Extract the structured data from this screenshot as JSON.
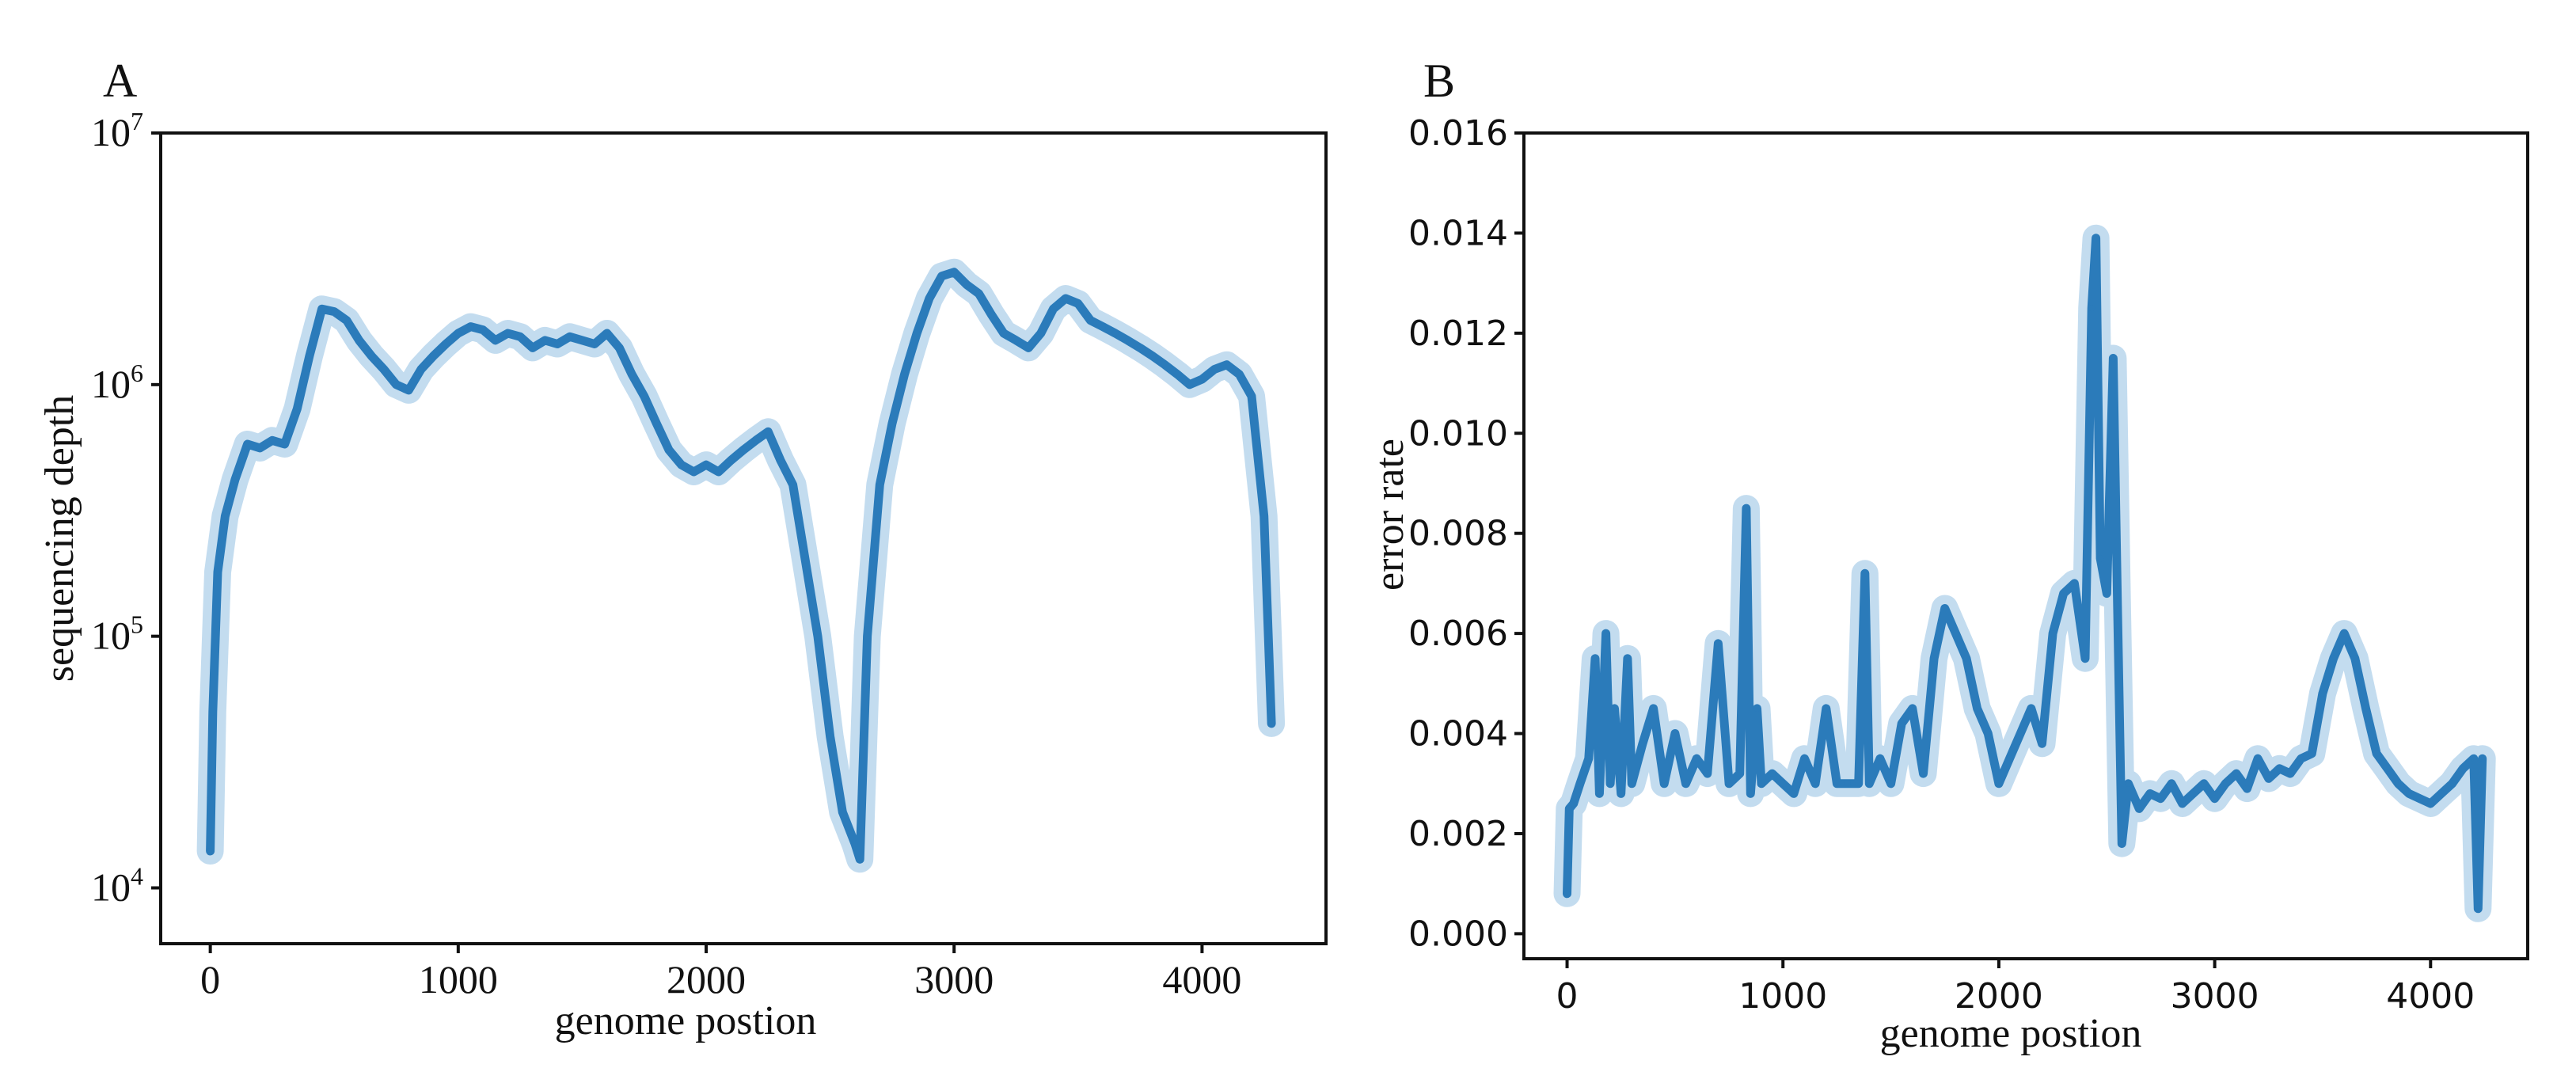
{
  "chart_data": [
    {
      "panel": "A",
      "type": "line",
      "xlabel": "genome postion",
      "ylabel": "sequencing depth",
      "xlim": [
        -200,
        4500
      ],
      "ylim": [
        6000,
        10000000
      ],
      "yscale": "log",
      "xticks": [
        0,
        1000,
        2000,
        3000,
        4000
      ],
      "xtick_labels": [
        "0",
        "1000",
        "2000",
        "3000",
        "4000"
      ],
      "yticks": [
        10000,
        100000,
        1000000,
        10000000
      ],
      "ytick_labels": [
        {
          "base": "10",
          "exp": "4"
        },
        {
          "base": "10",
          "exp": "5"
        },
        {
          "base": "10",
          "exp": "6"
        },
        {
          "base": "10",
          "exp": "7"
        }
      ],
      "grid": false,
      "series": [
        {
          "color": "#2b7bba",
          "band_color": "#b9d6ec",
          "x": [
            0,
            10,
            30,
            60,
            100,
            150,
            200,
            250,
            300,
            350,
            400,
            450,
            500,
            550,
            600,
            650,
            700,
            750,
            800,
            850,
            900,
            950,
            1000,
            1050,
            1100,
            1150,
            1200,
            1250,
            1300,
            1350,
            1400,
            1450,
            1500,
            1550,
            1600,
            1650,
            1700,
            1750,
            1800,
            1850,
            1900,
            1950,
            2000,
            2050,
            2100,
            2150,
            2200,
            2250,
            2300,
            2350,
            2400,
            2450,
            2500,
            2550,
            2600,
            2620,
            2650,
            2700,
            2750,
            2800,
            2850,
            2900,
            2950,
            3000,
            3050,
            3100,
            3150,
            3200,
            3250,
            3300,
            3350,
            3400,
            3450,
            3500,
            3550,
            3600,
            3650,
            3700,
            3750,
            3800,
            3850,
            3900,
            3950,
            4000,
            4050,
            4100,
            4150,
            4200,
            4250,
            4280
          ],
          "y": [
            14000,
            50000,
            180000,
            300000,
            420000,
            580000,
            560000,
            600000,
            580000,
            800000,
            1300000,
            2000000,
            1950000,
            1800000,
            1500000,
            1300000,
            1150000,
            1000000,
            950000,
            1150000,
            1300000,
            1450000,
            1600000,
            1700000,
            1650000,
            1500000,
            1600000,
            1550000,
            1400000,
            1500000,
            1450000,
            1550000,
            1500000,
            1450000,
            1600000,
            1400000,
            1100000,
            900000,
            700000,
            550000,
            480000,
            450000,
            480000,
            450000,
            500000,
            550000,
            600000,
            650000,
            500000,
            400000,
            200000,
            100000,
            40000,
            20000,
            15000,
            13000,
            100000,
            400000,
            700000,
            1100000,
            1600000,
            2200000,
            2700000,
            2800000,
            2500000,
            2300000,
            1900000,
            1600000,
            1500000,
            1400000,
            1600000,
            2000000,
            2200000,
            2100000,
            1800000,
            1700000,
            1600000,
            1500000,
            1400000,
            1300000,
            1200000,
            1100000,
            1000000,
            1050000,
            1150000,
            1200000,
            1100000,
            900000,
            300000,
            45000
          ]
        }
      ]
    },
    {
      "panel": "B",
      "type": "line",
      "xlabel": "genome postion",
      "ylabel": "error rate",
      "xlim": [
        -200,
        4450
      ],
      "ylim": [
        -0.0005,
        0.016
      ],
      "xticks": [
        0,
        1000,
        2000,
        3000,
        4000
      ],
      "xtick_labels": [
        "0",
        "1000",
        "2000",
        "3000",
        "4000"
      ],
      "yticks": [
        0.0,
        0.002,
        0.004,
        0.006,
        0.008,
        0.01,
        0.012,
        0.014,
        0.016
      ],
      "ytick_labels": [
        "0.000",
        "0.002",
        "0.004",
        "0.006",
        "0.008",
        "0.010",
        "0.012",
        "0.014",
        "0.016"
      ],
      "grid": false,
      "series": [
        {
          "color": "#2b7bba",
          "band_color": "#b9d6ec",
          "x": [
            0,
            10,
            30,
            60,
            100,
            130,
            150,
            180,
            200,
            220,
            250,
            280,
            300,
            350,
            400,
            450,
            500,
            550,
            600,
            650,
            700,
            750,
            800,
            830,
            850,
            880,
            900,
            950,
            1000,
            1050,
            1100,
            1150,
            1200,
            1250,
            1300,
            1350,
            1380,
            1400,
            1450,
            1500,
            1550,
            1600,
            1650,
            1700,
            1750,
            1800,
            1850,
            1900,
            1950,
            2000,
            2050,
            2100,
            2150,
            2200,
            2250,
            2300,
            2350,
            2400,
            2430,
            2450,
            2470,
            2500,
            2530,
            2550,
            2570,
            2600,
            2650,
            2700,
            2750,
            2800,
            2850,
            2900,
            2950,
            3000,
            3050,
            3100,
            3150,
            3200,
            3250,
            3300,
            3350,
            3400,
            3450,
            3500,
            3550,
            3600,
            3650,
            3700,
            3750,
            3800,
            3850,
            3900,
            3950,
            4000,
            4050,
            4100,
            4150,
            4200,
            4220,
            4240
          ],
          "y": [
            0.0008,
            0.0025,
            0.0026,
            0.003,
            0.0035,
            0.0055,
            0.0028,
            0.006,
            0.003,
            0.0045,
            0.0028,
            0.0055,
            0.003,
            0.0038,
            0.0045,
            0.003,
            0.004,
            0.003,
            0.0035,
            0.0032,
            0.0058,
            0.003,
            0.0032,
            0.0085,
            0.0028,
            0.0045,
            0.003,
            0.0032,
            0.003,
            0.0028,
            0.0035,
            0.003,
            0.0045,
            0.003,
            0.003,
            0.003,
            0.0072,
            0.003,
            0.0035,
            0.003,
            0.0042,
            0.0045,
            0.0032,
            0.0055,
            0.0065,
            0.006,
            0.0055,
            0.0045,
            0.004,
            0.003,
            0.0035,
            0.004,
            0.0045,
            0.0038,
            0.006,
            0.0068,
            0.007,
            0.0055,
            0.0125,
            0.0139,
            0.0075,
            0.0068,
            0.0115,
            0.0065,
            0.0018,
            0.003,
            0.0025,
            0.0028,
            0.0027,
            0.003,
            0.0026,
            0.0028,
            0.003,
            0.0027,
            0.003,
            0.0032,
            0.0029,
            0.0035,
            0.0031,
            0.0033,
            0.0032,
            0.0035,
            0.0036,
            0.0048,
            0.0055,
            0.006,
            0.0055,
            0.0045,
            0.0036,
            0.0033,
            0.003,
            0.0028,
            0.0027,
            0.0026,
            0.0028,
            0.003,
            0.0033,
            0.0035,
            0.0005,
            0.0035
          ]
        }
      ]
    }
  ]
}
